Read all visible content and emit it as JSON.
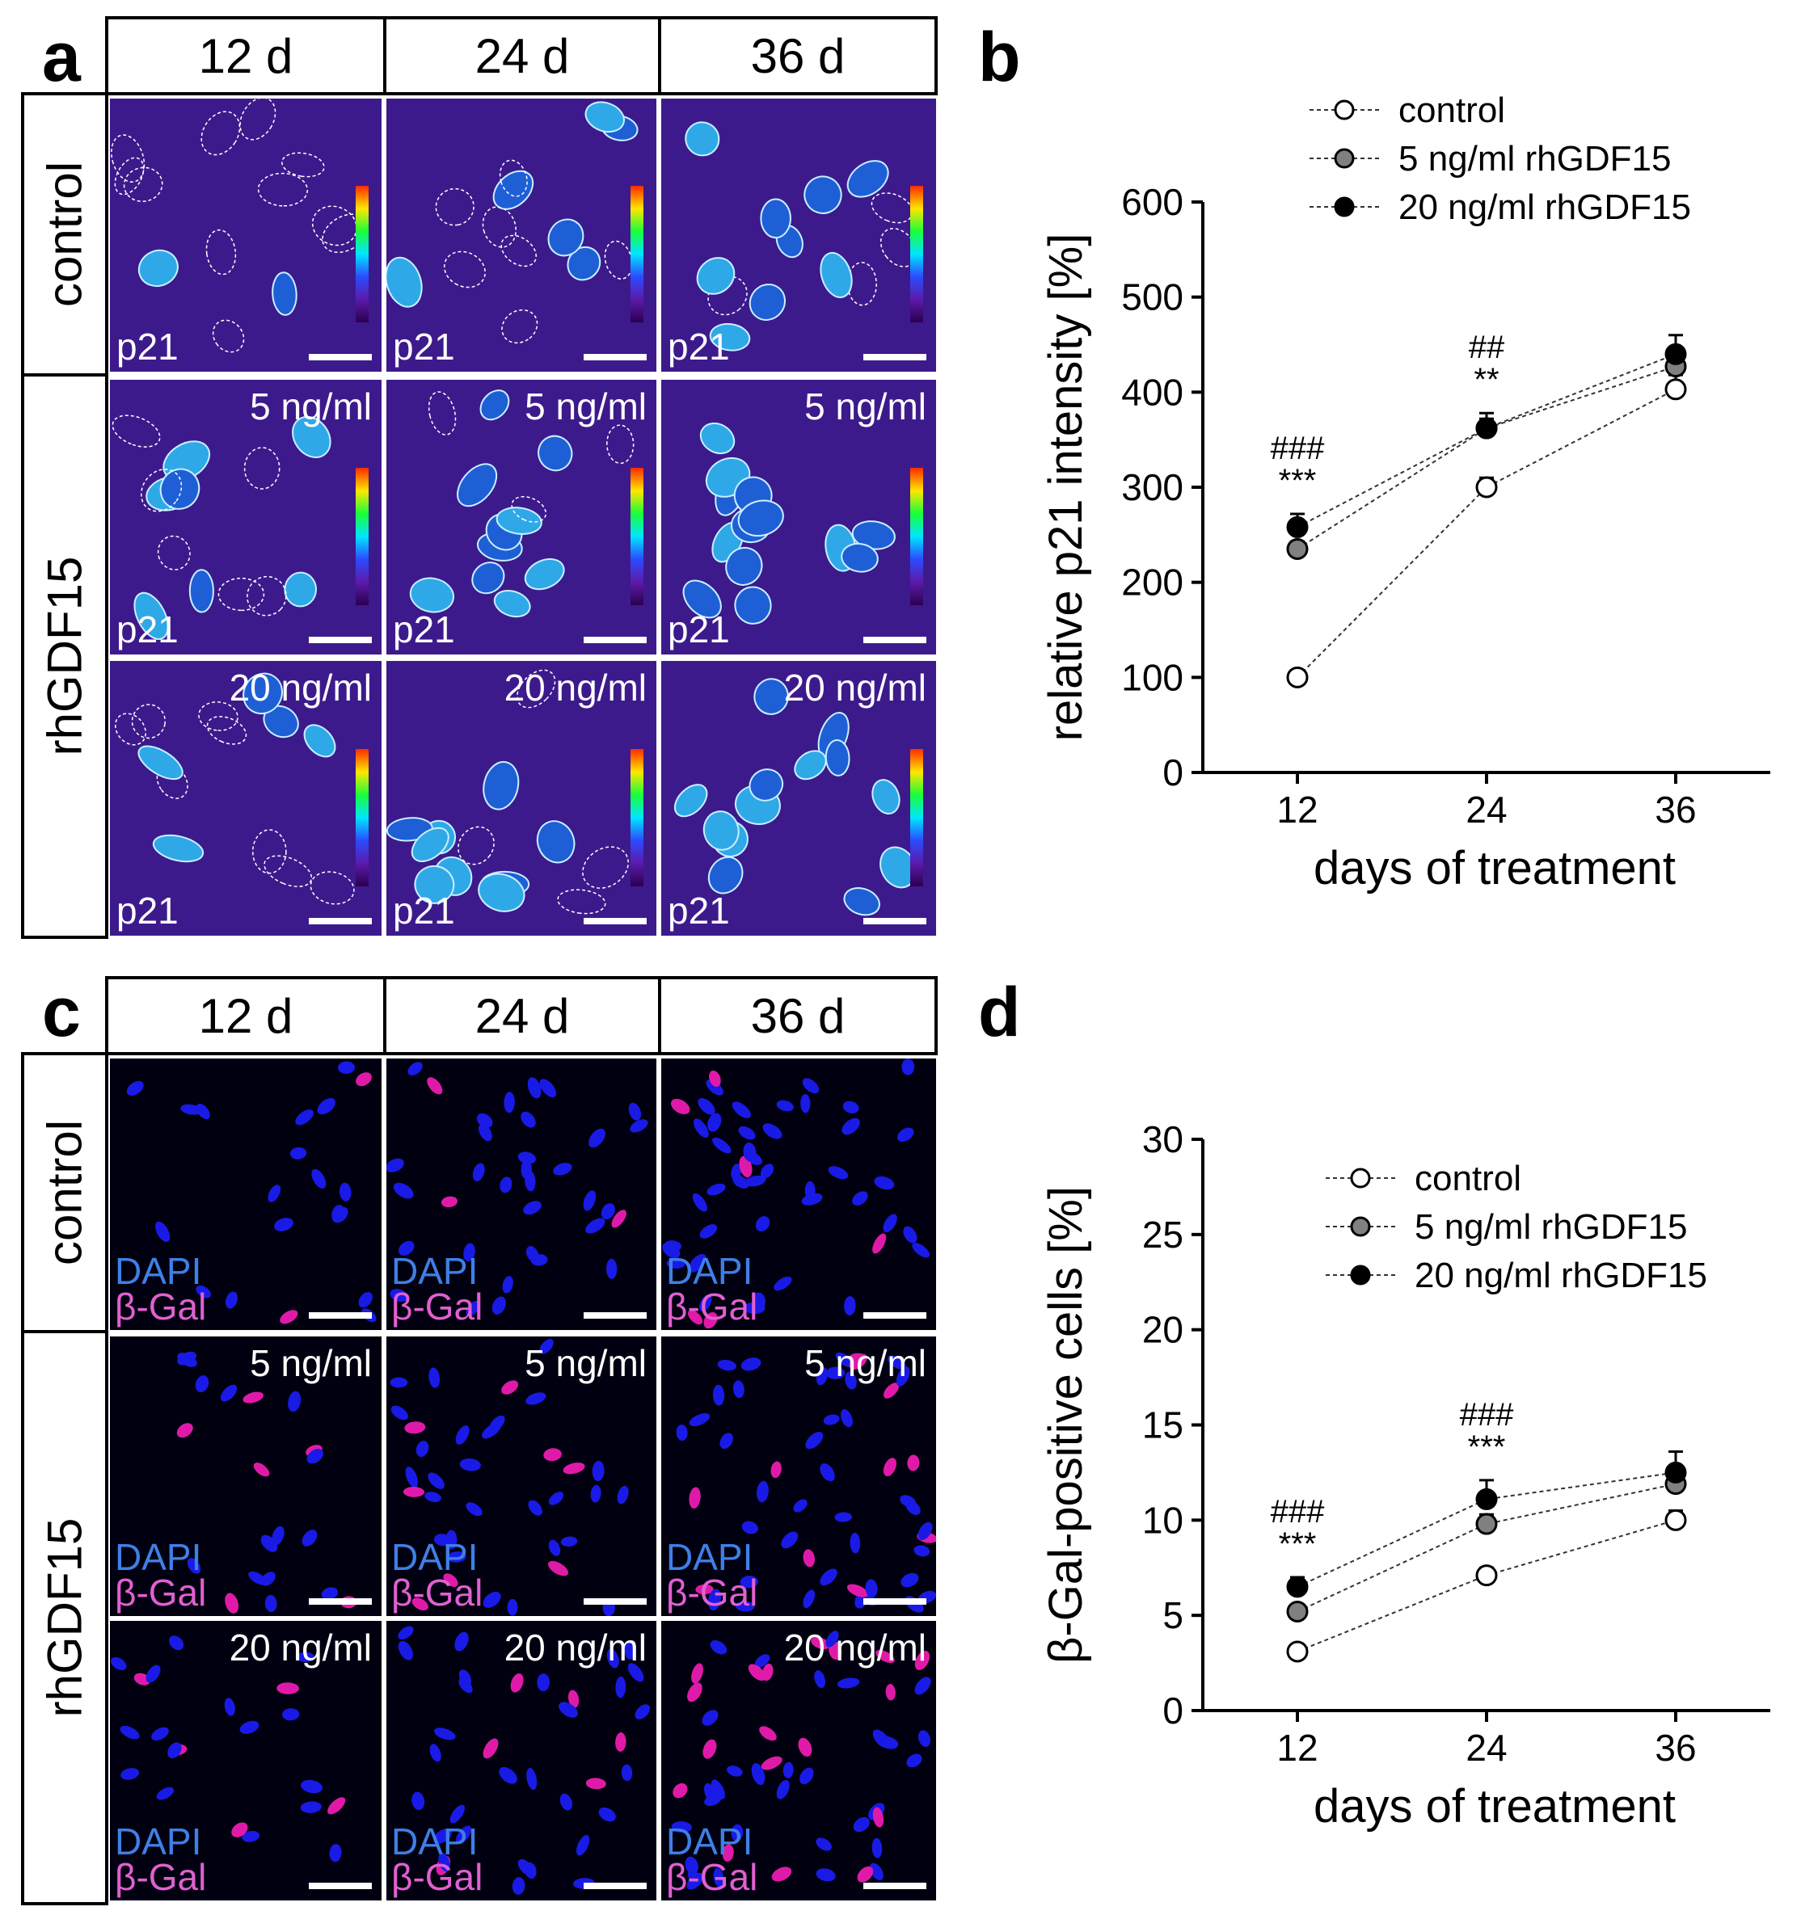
{
  "panels": {
    "a": "a",
    "b": "b",
    "c": "c",
    "d": "d"
  },
  "micrograph_grid": {
    "column_headers": [
      "12 d",
      "24 d",
      "36 d"
    ],
    "row_labels": [
      "control",
      "rhGDF15"
    ],
    "concentrations": [
      "5 ng/ml",
      "20 ng/ml"
    ]
  },
  "panel_a": {
    "marker": "p21",
    "background_color": "#3d1a8c",
    "colormap": [
      "#ff2a00",
      "#ffe600",
      "#19ff38",
      "#00e5ff",
      "#2b4bff",
      "#2a0050"
    ]
  },
  "panel_c": {
    "stain_1": "DAPI",
    "stain_2": "β-Gal",
    "nucleus_color": "#1a1ae6",
    "positive_color": "#e01aa8",
    "background_color": "#000010"
  },
  "chart_data": [
    {
      "type": "line",
      "panel": "b",
      "x": [
        12,
        24,
        36
      ],
      "x_tick_labels": [
        "12",
        "24",
        "36"
      ],
      "xlabel": "days of treatment",
      "ylabel": "relative p21 intensity [%]",
      "ylim": [
        0,
        600
      ],
      "y_ticks": [
        "0",
        "100",
        "200",
        "300",
        "400",
        "500",
        "600"
      ],
      "legend_position": "top",
      "series": [
        {
          "name": "control",
          "values": [
            100,
            300,
            403
          ],
          "errors": [
            0,
            10,
            15
          ],
          "fill": "#ffffff"
        },
        {
          "name": "5 ng/ml rhGDF15",
          "values": [
            235,
            362,
            427
          ],
          "errors": [
            8,
            10,
            12
          ],
          "fill": "#808080"
        },
        {
          "name": "20 ng/ml rhGDF15",
          "values": [
            258,
            362,
            440
          ],
          "errors": [
            14,
            16,
            20
          ],
          "fill": "#000000"
        }
      ],
      "annotations": [
        {
          "x": 12,
          "lines": [
            "###",
            "***"
          ]
        },
        {
          "x": 24,
          "lines": [
            "##",
            "**"
          ]
        }
      ]
    },
    {
      "type": "line",
      "panel": "d",
      "x": [
        12,
        24,
        36
      ],
      "x_tick_labels": [
        "12",
        "24",
        "36"
      ],
      "xlabel": "days of treatment",
      "ylabel": "β-Gal-positive cells [%]",
      "ylim": [
        0,
        30
      ],
      "y_ticks": [
        "0",
        "5",
        "10",
        "15",
        "20",
        "25",
        "30"
      ],
      "legend_position": "top",
      "series": [
        {
          "name": "control",
          "values": [
            3.1,
            7.1,
            10.0
          ],
          "errors": [
            0.2,
            0.4,
            0.5
          ],
          "fill": "#ffffff"
        },
        {
          "name": "5 ng/ml rhGDF15",
          "values": [
            5.2,
            9.8,
            11.9
          ],
          "errors": [
            0.3,
            0.5,
            0.9
          ],
          "fill": "#808080"
        },
        {
          "name": "20 ng/ml rhGDF15",
          "values": [
            6.5,
            11.1,
            12.5
          ],
          "errors": [
            0.5,
            1.0,
            1.1
          ],
          "fill": "#000000"
        }
      ],
      "annotations": [
        {
          "x": 12,
          "lines": [
            "###",
            "***"
          ]
        },
        {
          "x": 24,
          "lines": [
            "###",
            "***"
          ]
        }
      ]
    }
  ]
}
